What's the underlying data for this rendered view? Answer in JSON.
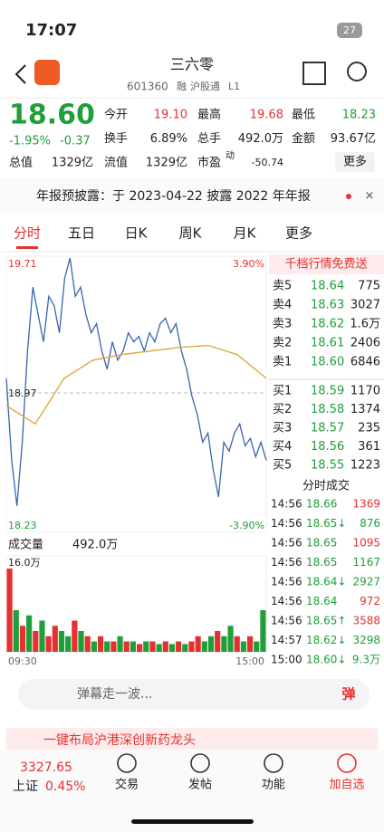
{
  "status": {
    "time": "17:07",
    "battery": "27"
  },
  "header": {
    "title": "三六零",
    "code": "601360",
    "tags": [
      "融",
      "沪股通",
      "L1"
    ]
  },
  "quote": {
    "price": "18.60",
    "change_pct": "-1.95%",
    "change": "-0.37",
    "fields": [
      {
        "label": "今开",
        "value": "19.10"
      },
      {
        "label": "最高",
        "value": "19.68"
      },
      {
        "label": "最低",
        "value": "18.23"
      },
      {
        "label": "换手",
        "value": "6.89%"
      },
      {
        "label": "总手",
        "value": "492.0万"
      },
      {
        "label": "金额",
        "value": "93.67亿"
      },
      {
        "label": "总值",
        "value": "1329亿"
      },
      {
        "label": "流值",
        "value": "1329亿"
      },
      {
        "label": "市盈",
        "value": "-50.74"
      }
    ],
    "pe_sup": "动",
    "more": "更多"
  },
  "notice": "年报预披露：于 2023-04-22 披露 2022 年年报",
  "tabs": [
    "分时",
    "五日",
    "日K",
    "周K",
    "月K",
    "更多"
  ],
  "chart_data": {
    "type": "line",
    "labels": {
      "top_price": "19.71",
      "top_pct": "3.90%",
      "mid_price": "18.97",
      "low_price": "18.23",
      "low_pct": "-3.90%"
    },
    "ylim": [
      18.23,
      19.71
    ],
    "mid": 18.97,
    "series": [
      {
        "name": "price",
        "color": "#3a64b0",
        "values": [
          19.05,
          18.6,
          18.35,
          18.7,
          19.2,
          19.55,
          19.4,
          19.25,
          19.5,
          19.45,
          19.3,
          19.6,
          19.71,
          19.5,
          19.55,
          19.4,
          19.3,
          19.35,
          19.2,
          19.1,
          19.25,
          19.15,
          19.2,
          19.3,
          19.25,
          19.28,
          19.2,
          19.3,
          19.25,
          19.35,
          19.38,
          19.3,
          19.35,
          19.2,
          19.1,
          18.95,
          18.85,
          18.7,
          18.75,
          18.55,
          18.4,
          18.7,
          18.65,
          18.75,
          18.8,
          18.68,
          18.72,
          18.62,
          18.7,
          18.6
        ]
      },
      {
        "name": "average",
        "color": "#e0a537",
        "values": [
          18.9,
          18.8,
          19.05,
          19.15,
          19.18,
          19.2,
          19.22,
          19.23,
          19.18,
          19.05
        ]
      }
    ],
    "xlabels": [
      "09:30",
      "15:00"
    ]
  },
  "volume": {
    "type": "bar",
    "title": "成交量",
    "total": "492.0万",
    "max_label": "16.0万",
    "ylim": [
      0,
      16
    ],
    "values": [
      16,
      8,
      5,
      7,
      4,
      6,
      3,
      5,
      4,
      3,
      6,
      4,
      3,
      2,
      3,
      2,
      2,
      3,
      2,
      2,
      1.5,
      2,
      2,
      1.5,
      2,
      1.5,
      2,
      1.5,
      2,
      3,
      2,
      3,
      4,
      3,
      5,
      3,
      2,
      3,
      2,
      8
    ],
    "colors": [
      "r",
      "g",
      "r",
      "g",
      "r",
      "g",
      "r",
      "r",
      "g",
      "g",
      "r",
      "g",
      "r",
      "g",
      "r",
      "g",
      "r",
      "g",
      "r",
      "g",
      "r",
      "g",
      "r",
      "g",
      "r",
      "g",
      "r",
      "g",
      "r",
      "r",
      "g",
      "g",
      "r",
      "g",
      "g",
      "r",
      "g",
      "r",
      "g",
      "g"
    ]
  },
  "book": {
    "title": "千档行情免费送",
    "asks": [
      {
        "label": "卖5",
        "price": "18.64",
        "vol": "775"
      },
      {
        "label": "卖4",
        "price": "18.63",
        "vol": "3027"
      },
      {
        "label": "卖3",
        "price": "18.62",
        "vol": "1.6万"
      },
      {
        "label": "卖2",
        "price": "18.61",
        "vol": "2406"
      },
      {
        "label": "卖1",
        "price": "18.60",
        "vol": "6846"
      }
    ],
    "bids": [
      {
        "label": "买1",
        "price": "18.59",
        "vol": "1170"
      },
      {
        "label": "买2",
        "price": "18.58",
        "vol": "1374"
      },
      {
        "label": "买3",
        "price": "18.57",
        "vol": "235"
      },
      {
        "label": "买4",
        "price": "18.56",
        "vol": "361"
      },
      {
        "label": "买5",
        "price": "18.55",
        "vol": "1223"
      }
    ]
  },
  "trades": {
    "title": "分时成交",
    "rows": [
      {
        "time": "14:56",
        "price": "18.66",
        "vol": "1369",
        "color": "r"
      },
      {
        "time": "14:56",
        "price": "18.65↓",
        "vol": "876",
        "color": "g"
      },
      {
        "time": "14:56",
        "price": "18.65",
        "vol": "1095",
        "color": "r"
      },
      {
        "time": "14:56",
        "price": "18.65",
        "vol": "1167",
        "color": "g"
      },
      {
        "time": "14:56",
        "price": "18.64↓",
        "vol": "2927",
        "color": "g"
      },
      {
        "time": "14:56",
        "price": "18.64",
        "vol": "972",
        "color": "r"
      },
      {
        "time": "14:56",
        "price": "18.65↑",
        "vol": "3588",
        "color": "r"
      },
      {
        "time": "14:57",
        "price": "18.62↓",
        "vol": "3298",
        "color": "g"
      },
      {
        "time": "15:00",
        "price": "18.60↓",
        "vol": "9.3万",
        "color": "g"
      }
    ]
  },
  "comment": {
    "placeholder": "弹幕走一波...",
    "icon": "弹"
  },
  "banner": "一键布局沪港深创新药龙头",
  "footer": {
    "index": "3327.65",
    "name": "上证",
    "pct": "0.45%",
    "nav": [
      "交易",
      "发帖",
      "功能",
      "加自选"
    ]
  }
}
